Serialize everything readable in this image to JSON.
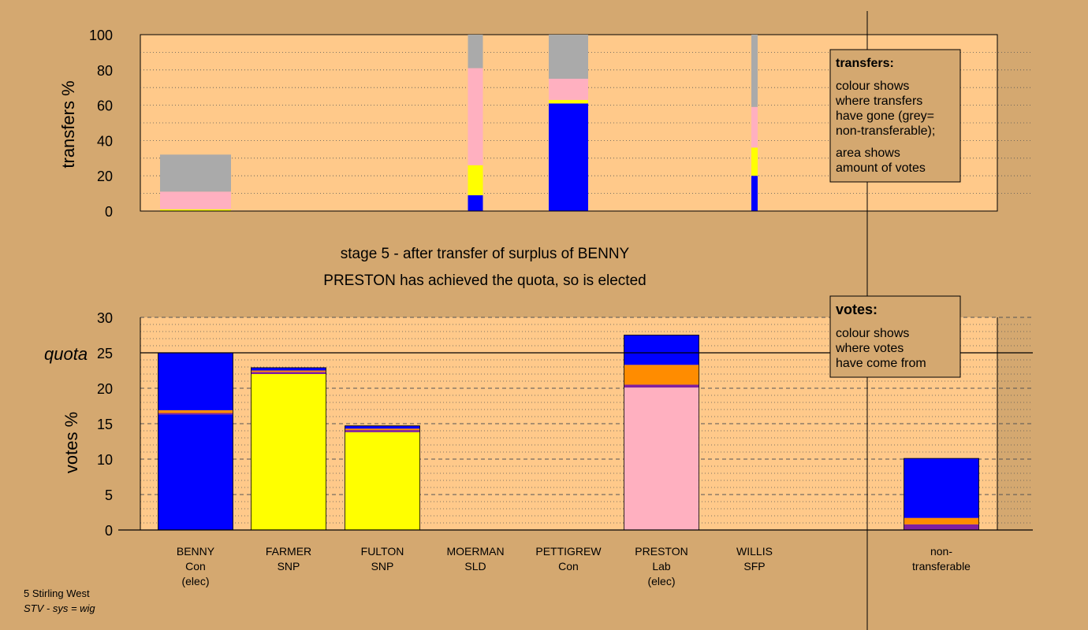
{
  "colors": {
    "background": "#d4a870",
    "plot_bg": "#ffc98a",
    "Con": "#0000ff",
    "SNP": "#ffff00",
    "Lab": "#ffb0c0",
    "SLD": "#ff8c00",
    "SFP": "#7f1fa0",
    "non_transferable": "#aaaaaa"
  },
  "status": {
    "line1": "stage 5 - after transfer of surplus of BENNY",
    "line2": "PRESTON has achieved the quota, so is elected"
  },
  "footer": {
    "constituency": "5 Stirling West",
    "system": "STV - sys = wig"
  },
  "legend_transfers": {
    "title": "transfers:",
    "lines": [
      "colour shows",
      "where transfers",
      "have gone (grey=",
      "non-transferable);"
    ],
    "lines2": [
      "area shows",
      "amount of votes"
    ]
  },
  "legend_votes": {
    "title": "votes:",
    "lines": [
      "colour shows",
      "where votes",
      "have come from"
    ]
  },
  "candidates": [
    {
      "name": "BENNY",
      "party": "Con",
      "note": "(elec)"
    },
    {
      "name": "FARMER",
      "party": "SNP",
      "note": ""
    },
    {
      "name": "FULTON",
      "party": "SNP",
      "note": ""
    },
    {
      "name": "MOERMAN",
      "party": "SLD",
      "note": ""
    },
    {
      "name": "PETTIGREW",
      "party": "Con",
      "note": ""
    },
    {
      "name": "PRESTON",
      "party": "Lab",
      "note": "(elec)"
    },
    {
      "name": "WILLIS",
      "party": "SFP",
      "note": ""
    },
    {
      "name": "",
      "party": "",
      "note": ""
    },
    {
      "name": "non-",
      "party": "transferable",
      "note": ""
    }
  ],
  "chart_data": [
    {
      "type": "bar",
      "ylabel": "transfers %",
      "ylim": [
        0,
        100
      ],
      "yticks": [
        0,
        20,
        40,
        60,
        80,
        100
      ],
      "grid": "dotted every 10",
      "series_note": "stacked segments per transferring candidate, colour = destination",
      "bars": [
        {
          "candidate": "BENNY",
          "segments": [
            {
              "color": "SNP",
              "value": 1
            },
            {
              "color": "Lab",
              "value": 10
            },
            {
              "color": "non_transferable",
              "value": 21
            }
          ]
        },
        {
          "candidate": "MOERMAN",
          "segments": [
            {
              "color": "Con",
              "value": 9
            },
            {
              "color": "SNP",
              "value": 17
            },
            {
              "color": "Lab",
              "value": 55
            },
            {
              "color": "non_transferable",
              "value": 19
            }
          ]
        },
        {
          "candidate": "PETTIGREW",
          "segments": [
            {
              "color": "Con",
              "value": 61
            },
            {
              "color": "SNP",
              "value": 2
            },
            {
              "color": "Lab",
              "value": 12
            },
            {
              "color": "non_transferable",
              "value": 25
            }
          ]
        },
        {
          "candidate": "WILLIS",
          "segments": [
            {
              "color": "Con",
              "value": 20
            },
            {
              "color": "SNP",
              "value": 16
            },
            {
              "color": "Lab",
              "value": 23
            },
            {
              "color": "non_transferable",
              "value": 41
            }
          ]
        }
      ]
    },
    {
      "type": "bar",
      "ylabel": "votes %",
      "ylim": [
        0,
        30
      ],
      "yticks": [
        0,
        5,
        10,
        15,
        20,
        25,
        30
      ],
      "quota": 25,
      "quota_label": "quota",
      "series_note": "stacked segments per candidate, colour = source of votes",
      "bars": [
        {
          "candidate": "BENNY",
          "segments": [
            {
              "color": "Con",
              "value": 16.3
            },
            {
              "color": "SFP",
              "value": 0.2
            },
            {
              "color": "SLD",
              "value": 0.4
            },
            {
              "color": "Con",
              "value": 8.1
            }
          ]
        },
        {
          "candidate": "FARMER",
          "segments": [
            {
              "color": "SNP",
              "value": 22.0
            },
            {
              "color": "SFP",
              "value": 0.3
            },
            {
              "color": "SLD",
              "value": 0.2
            },
            {
              "color": "Con",
              "value": 0.4
            }
          ]
        },
        {
          "candidate": "FULTON",
          "segments": [
            {
              "color": "SNP",
              "value": 13.8
            },
            {
              "color": "SFP",
              "value": 0.3
            },
            {
              "color": "SLD",
              "value": 0.2
            },
            {
              "color": "Con",
              "value": 0.4
            }
          ]
        },
        {
          "candidate": "MOERMAN",
          "segments": []
        },
        {
          "candidate": "PETTIGREW",
          "segments": []
        },
        {
          "candidate": "PRESTON",
          "segments": [
            {
              "color": "Lab",
              "value": 20.1
            },
            {
              "color": "SFP",
              "value": 0.4
            },
            {
              "color": "SLD",
              "value": 2.8
            },
            {
              "color": "Con",
              "value": 4.2
            }
          ]
        },
        {
          "candidate": "WILLIS",
          "segments": []
        },
        {
          "candidate": "non-transferable",
          "segments": [
            {
              "color": "SFP",
              "value": 0.8
            },
            {
              "color": "SLD",
              "value": 0.9
            },
            {
              "color": "Con",
              "value": 8.4
            }
          ]
        }
      ]
    }
  ]
}
